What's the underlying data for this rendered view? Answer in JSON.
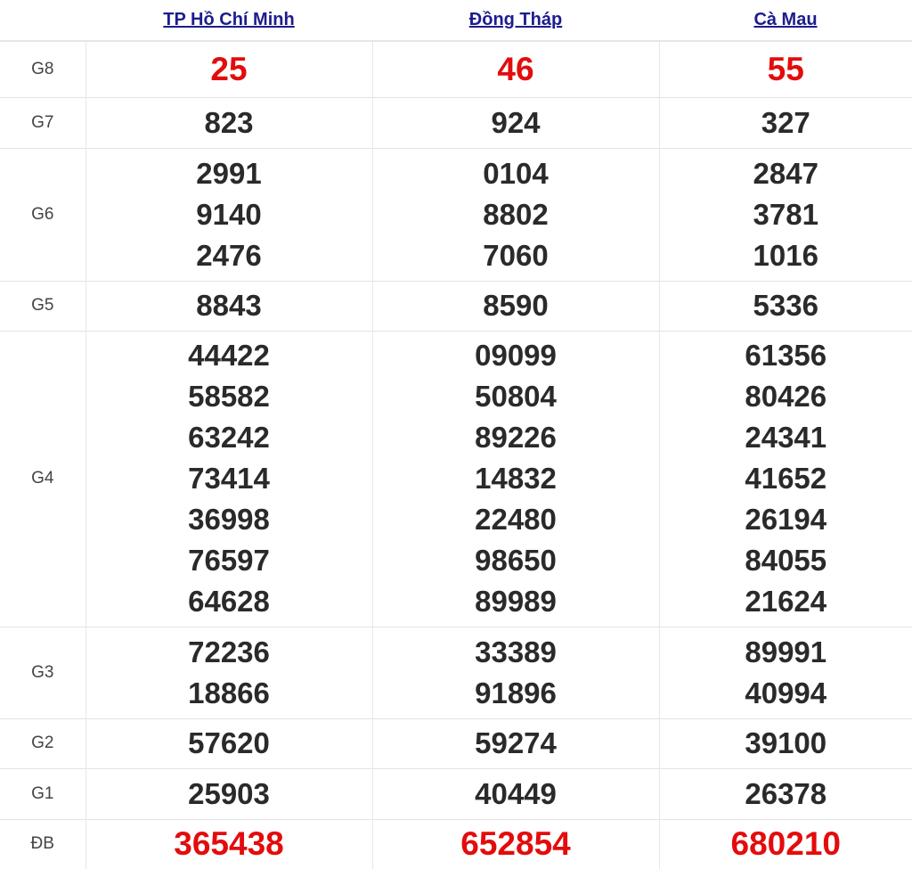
{
  "provinces": [
    "TP Hồ Chí Minh",
    "Đồng Tháp",
    "Cà Mau"
  ],
  "colors": {
    "highlight": "#e30c0c",
    "link": "#1c1c8f",
    "text": "#2a2a2a"
  },
  "rows": [
    {
      "label": "G8",
      "highlight": true,
      "values": [
        [
          "25"
        ],
        [
          "46"
        ],
        [
          "55"
        ]
      ]
    },
    {
      "label": "G7",
      "values": [
        [
          "823"
        ],
        [
          "924"
        ],
        [
          "327"
        ]
      ]
    },
    {
      "label": "G6",
      "values": [
        [
          "2991",
          "9140",
          "2476"
        ],
        [
          "0104",
          "8802",
          "7060"
        ],
        [
          "2847",
          "3781",
          "1016"
        ]
      ]
    },
    {
      "label": "G5",
      "values": [
        [
          "8843"
        ],
        [
          "8590"
        ],
        [
          "5336"
        ]
      ]
    },
    {
      "label": "G4",
      "values": [
        [
          "44422",
          "58582",
          "63242",
          "73414",
          "36998",
          "76597",
          "64628"
        ],
        [
          "09099",
          "50804",
          "89226",
          "14832",
          "22480",
          "98650",
          "89989"
        ],
        [
          "61356",
          "80426",
          "24341",
          "41652",
          "26194",
          "84055",
          "21624"
        ]
      ]
    },
    {
      "label": "G3",
      "values": [
        [
          "72236",
          "18866"
        ],
        [
          "33389",
          "91896"
        ],
        [
          "89991",
          "40994"
        ]
      ]
    },
    {
      "label": "G2",
      "values": [
        [
          "57620"
        ],
        [
          "59274"
        ],
        [
          "39100"
        ]
      ]
    },
    {
      "label": "G1",
      "values": [
        [
          "25903"
        ],
        [
          "40449"
        ],
        [
          "26378"
        ]
      ]
    },
    {
      "label": "ĐB",
      "highlight": true,
      "values": [
        [
          "365438"
        ],
        [
          "652854"
        ],
        [
          "680210"
        ]
      ]
    }
  ]
}
